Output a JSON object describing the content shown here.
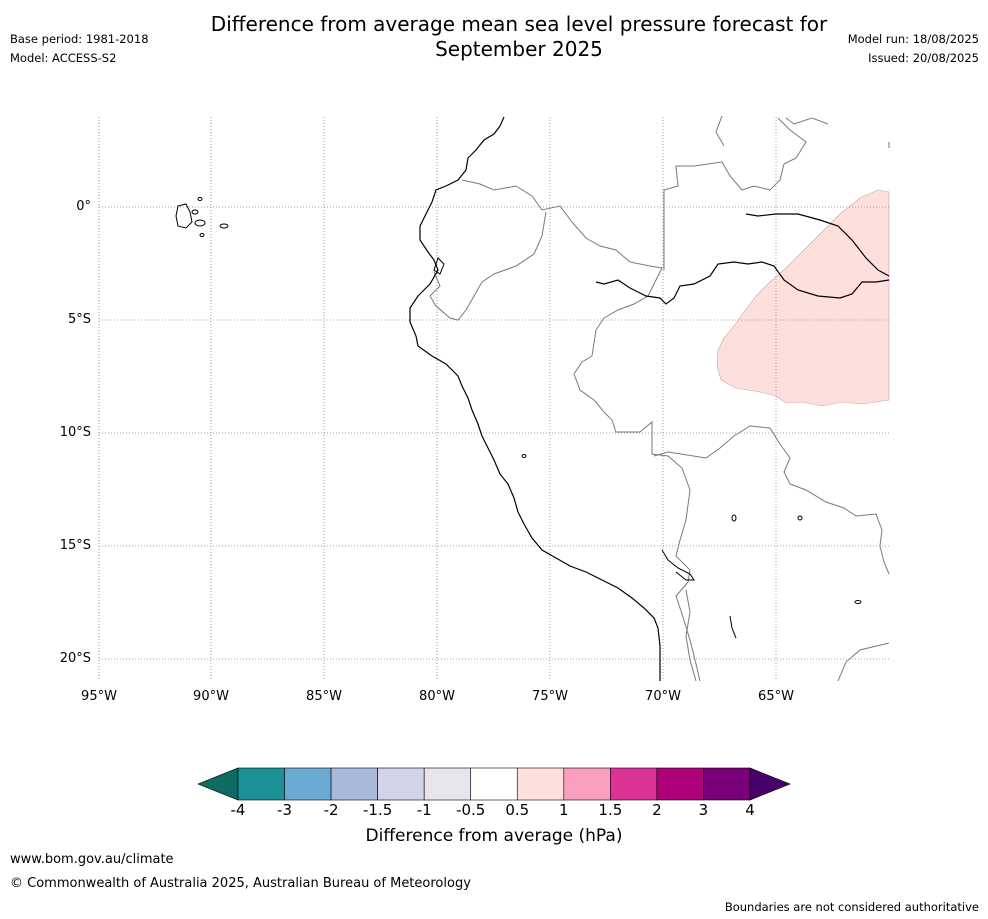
{
  "header": {
    "title_line1": "Difference from average mean sea level pressure forecast for",
    "title_line2": "September 2025",
    "base_period": "Base period: 1981-2018",
    "model": "Model: ACCESS-S2",
    "model_run": "Model run: 18/08/2025",
    "issued": "Issued: 20/08/2025"
  },
  "map": {
    "latitude_labels": [
      "0°",
      "5°S",
      "10°S",
      "15°S",
      "20°S"
    ],
    "longitude_labels": [
      "95°W",
      "90°W",
      "85°W",
      "80°W",
      "75°W",
      "70°W",
      "65°W"
    ],
    "anomaly_region": {
      "category": "0.5 to 1",
      "color": "#fddfdd"
    }
  },
  "colorbar": {
    "title": "Difference from average (hPa)",
    "tick_labels": [
      "-4",
      "-3",
      "-2",
      "-1.5",
      "-1",
      "-0.5",
      "0.5",
      "1",
      "1.5",
      "2",
      "3",
      "4"
    ],
    "colors": [
      "#0e6b61",
      "#1b9198",
      "#6aa9d2",
      "#a9b9da",
      "#d2d3e8",
      "#e8e6ec",
      "#ffffff",
      "#fddfdd",
      "#f8a0be",
      "#dc3397",
      "#ad0079",
      "#7a0079",
      "#49006a"
    ]
  },
  "footer": {
    "website": "www.bom.gov.au/climate",
    "copyright": "© Commonwealth of Australia 2025, Australian Bureau of Meteorology",
    "disclaimer": "Boundaries are not considered authoritative"
  }
}
